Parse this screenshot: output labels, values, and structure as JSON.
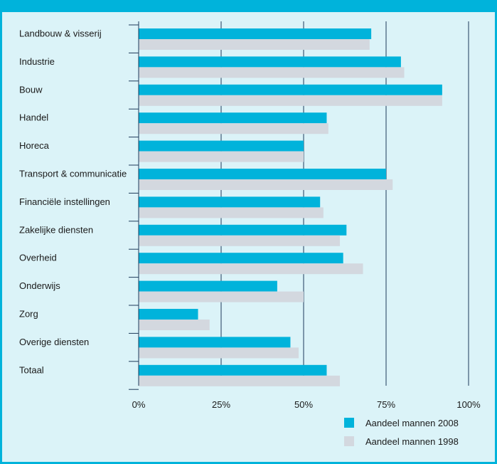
{
  "chart_data": {
    "type": "bar",
    "orientation": "horizontal",
    "categories": [
      "Landbouw & visserij",
      "Industrie",
      "Bouw",
      "Handel",
      "Horeca",
      "Transport & communicatie",
      "Financiële instellingen",
      "Zakelijke diensten",
      "Overheid",
      "Onderwijs",
      "Zorg",
      "Overige diensten",
      "Totaal"
    ],
    "series": [
      {
        "name": "Aandeel mannen 2008",
        "color": "#00b3db",
        "values": [
          70.5,
          79.5,
          92,
          57,
          50,
          75,
          55,
          63,
          62,
          42,
          18,
          46,
          57
        ]
      },
      {
        "name": "Aandeel mannen 1998",
        "color": "#d3d8df",
        "values": [
          70,
          80.5,
          92,
          57.5,
          50,
          77,
          56,
          61,
          68,
          50,
          21.5,
          48.5,
          61
        ]
      }
    ],
    "xlim": [
      0,
      100
    ],
    "xticks": [
      "0%",
      "25%",
      "50%",
      "75%",
      "100%"
    ],
    "tick_values": [
      0,
      25,
      50,
      75,
      100
    ],
    "grid": "vertical",
    "legend_position": "bottom-right"
  }
}
